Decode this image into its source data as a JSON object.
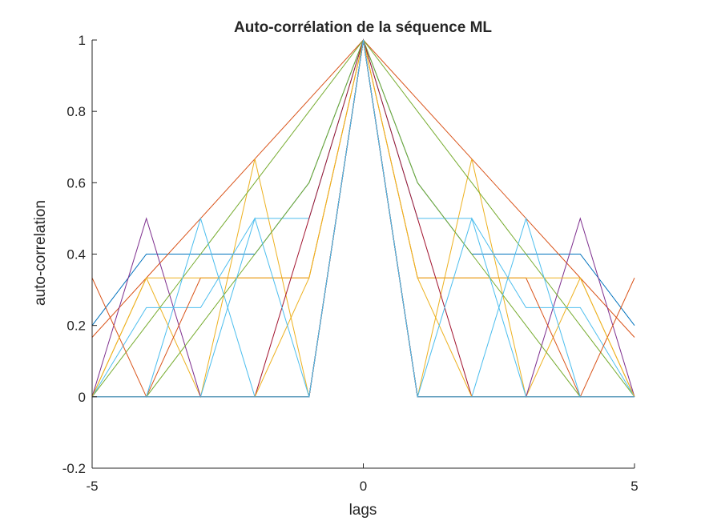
{
  "chart_data": {
    "type": "line",
    "title": "Auto-corrélation de la séquence ML",
    "xlabel": "lags",
    "ylabel": "auto-correlation",
    "xlim": [
      -5,
      5
    ],
    "ylim": [
      -0.2,
      1
    ],
    "x": [
      -5,
      -4,
      -3,
      -2,
      -1,
      0,
      1,
      2,
      3,
      4,
      5
    ],
    "x_ticks": [
      "-5",
      "0",
      "5"
    ],
    "y_ticks": [
      "-0.2",
      "0",
      "0.2",
      "0.4",
      "0.6",
      "0.8",
      "1"
    ],
    "grid": false,
    "series": [
      {
        "color": "#0072BD",
        "values": [
          0.2,
          0.4,
          0.4,
          0.4,
          0.6,
          1,
          0.6,
          0.4,
          0.4,
          0.4,
          0.2
        ]
      },
      {
        "color": "#D95319",
        "values": [
          0.1667,
          0.3333,
          0.5,
          0.6667,
          0.8333,
          1,
          0.8333,
          0.6667,
          0.5,
          0.3333,
          0.1667
        ]
      },
      {
        "color": "#EDB120",
        "values": [
          0,
          0.3333,
          0,
          0.6667,
          0,
          1,
          0,
          0.6667,
          0,
          0.3333,
          0
        ]
      },
      {
        "color": "#7E2F8E",
        "values": [
          0,
          0.5,
          0,
          0,
          0,
          1,
          0,
          0,
          0,
          0.5,
          0
        ]
      },
      {
        "color": "#77AC30",
        "values": [
          0,
          0.2,
          0.4,
          0.6,
          0.8,
          1,
          0.8,
          0.6,
          0.4,
          0.2,
          0
        ]
      },
      {
        "color": "#4DBEEE",
        "values": [
          0,
          0.25,
          0.25,
          0.5,
          0.5,
          1,
          0.5,
          0.5,
          0.25,
          0.25,
          0
        ]
      },
      {
        "color": "#A2142F",
        "values": [
          0,
          0,
          0,
          0,
          0,
          1,
          0,
          0,
          0,
          0,
          0
        ]
      },
      {
        "color": "#0072BD",
        "values": [
          0,
          0,
          0,
          0,
          0,
          1,
          0,
          0,
          0,
          0,
          0
        ]
      },
      {
        "color": "#D95319",
        "values": [
          0.3333,
          0,
          0.3333,
          0.3333,
          0.3333,
          1,
          0.3333,
          0.3333,
          0.3333,
          0,
          0.3333
        ]
      },
      {
        "color": "#EDB120",
        "values": [
          0,
          0.3333,
          0.3333,
          0.3333,
          0.3333,
          1,
          0.3333,
          0.3333,
          0.3333,
          0.3333,
          0
        ]
      },
      {
        "color": "#7E2F8E",
        "values": [
          0,
          0,
          0,
          0,
          0,
          1,
          0,
          0,
          0,
          0,
          0
        ]
      },
      {
        "color": "#77AC30",
        "values": [
          0,
          0,
          0.2,
          0.4,
          0.6,
          1,
          0.6,
          0.4,
          0.2,
          0,
          0
        ]
      },
      {
        "color": "#4DBEEE",
        "values": [
          0,
          0,
          0.5,
          0,
          0,
          1,
          0,
          0,
          0.5,
          0,
          0
        ]
      },
      {
        "color": "#A2142F",
        "values": [
          0,
          0,
          0,
          0,
          0.5,
          1,
          0.5,
          0,
          0,
          0,
          0
        ]
      },
      {
        "color": "#0072BD",
        "values": [
          0,
          0,
          0,
          0,
          0,
          1,
          0,
          0,
          0,
          0,
          0
        ]
      },
      {
        "color": "#D95319",
        "values": [
          0,
          0,
          0,
          0,
          0,
          1,
          0,
          0,
          0,
          0,
          0
        ]
      },
      {
        "color": "#EDB120",
        "values": [
          0,
          0,
          0,
          0,
          0.3333,
          1,
          0.3333,
          0,
          0,
          0,
          0
        ]
      },
      {
        "color": "#7E2F8E",
        "values": [
          0,
          0,
          0,
          0,
          0,
          1,
          0,
          0,
          0,
          0,
          0
        ]
      },
      {
        "color": "#77AC30",
        "values": [
          0,
          0,
          0,
          0,
          0,
          1,
          0,
          0,
          0,
          0,
          0
        ]
      },
      {
        "color": "#4DBEEE",
        "values": [
          0,
          0,
          0,
          0.5,
          0,
          1,
          0,
          0.5,
          0,
          0,
          0
        ]
      },
      {
        "color": "#A2142F",
        "values": [
          0,
          0,
          0,
          0,
          0,
          1,
          0,
          0,
          0,
          0,
          0
        ]
      },
      {
        "color": "#0072BD",
        "values": [
          0,
          0,
          0,
          0,
          0,
          1,
          0,
          0,
          0,
          0,
          0
        ]
      },
      {
        "color": "#D95319",
        "values": [
          0,
          0,
          0,
          0,
          0,
          1,
          0,
          0,
          0,
          0,
          0
        ]
      },
      {
        "color": "#EDB120",
        "values": [
          0,
          0,
          0,
          0,
          0,
          1,
          0,
          0,
          0,
          0,
          0
        ]
      },
      {
        "color": "#7E2F8E",
        "values": [
          0,
          0,
          0,
          0,
          0,
          1,
          0,
          0,
          0,
          0,
          0
        ]
      },
      {
        "color": "#77AC30",
        "values": [
          0,
          0,
          0,
          0,
          0,
          1,
          0,
          0,
          0,
          0,
          0
        ]
      },
      {
        "color": "#4DBEEE",
        "values": [
          0,
          0,
          0,
          0,
          0,
          1,
          0,
          0,
          0,
          0,
          0
        ]
      },
      {
        "color": "#A2142F",
        "values": [
          0,
          0,
          0,
          0,
          0,
          1,
          0,
          0,
          0,
          0,
          0
        ]
      },
      {
        "color": "#4DBEEE",
        "values": [
          0,
          0,
          0,
          0,
          0,
          1,
          0,
          0,
          0,
          0,
          0
        ]
      }
    ]
  }
}
